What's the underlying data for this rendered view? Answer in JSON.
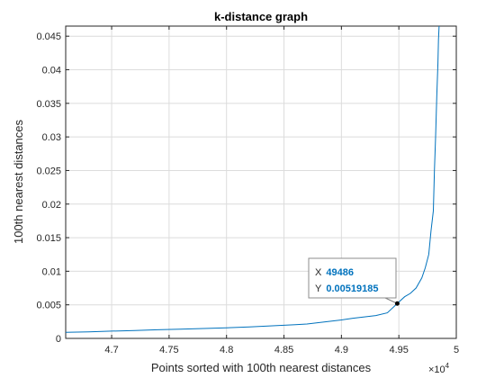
{
  "chart_data": {
    "type": "line",
    "title": "k-distance graph",
    "xlabel": "Points sorted with 100th nearest distances",
    "ylabel": "100th nearest distances",
    "x_exponent_label": "×10",
    "x_exponent_power": "4",
    "xlim": [
      46600,
      50000
    ],
    "ylim": [
      0,
      0.0465
    ],
    "x_ticks": [
      47000,
      47500,
      48000,
      48500,
      49000,
      49500,
      50000
    ],
    "x_tick_labels": [
      "4.7",
      "4.75",
      "4.8",
      "4.85",
      "4.9",
      "4.95",
      "5"
    ],
    "y_ticks": [
      0,
      0.005,
      0.01,
      0.015,
      0.02,
      0.025,
      0.03,
      0.035,
      0.04,
      0.045
    ],
    "y_tick_labels": [
      "0",
      "0.005",
      "0.01",
      "0.015",
      "0.02",
      "0.025",
      "0.03",
      "0.035",
      "0.04",
      "0.045"
    ],
    "grid": true,
    "line_color": "#0072BD",
    "series": [
      {
        "x": [
          46600,
          46800,
          47000,
          47200,
          47400,
          47600,
          47800,
          48000,
          48200,
          48400,
          48600,
          48700,
          48800,
          48900,
          49000,
          49100,
          49200,
          49300,
          49400,
          49486,
          49550,
          49600,
          49650,
          49700,
          49730,
          49760,
          49780,
          49800,
          49810,
          49820,
          49830,
          49840,
          49845,
          49850
        ],
        "y": [
          0.0009,
          0.00098,
          0.00108,
          0.00118,
          0.00128,
          0.00138,
          0.00148,
          0.00158,
          0.00172,
          0.00188,
          0.00205,
          0.00215,
          0.00235,
          0.00255,
          0.00275,
          0.003,
          0.0032,
          0.0034,
          0.0038,
          0.00519185,
          0.0062,
          0.0067,
          0.0075,
          0.009,
          0.0105,
          0.0125,
          0.016,
          0.019,
          0.025,
          0.03,
          0.036,
          0.041,
          0.0445,
          0.0465
        ]
      }
    ],
    "datatip": {
      "x_label": "X",
      "x_value": "49486",
      "y_label": "Y",
      "y_value": "0.00519185",
      "x": 49486,
      "y": 0.00519185,
      "value_color": "#0072BD"
    }
  }
}
